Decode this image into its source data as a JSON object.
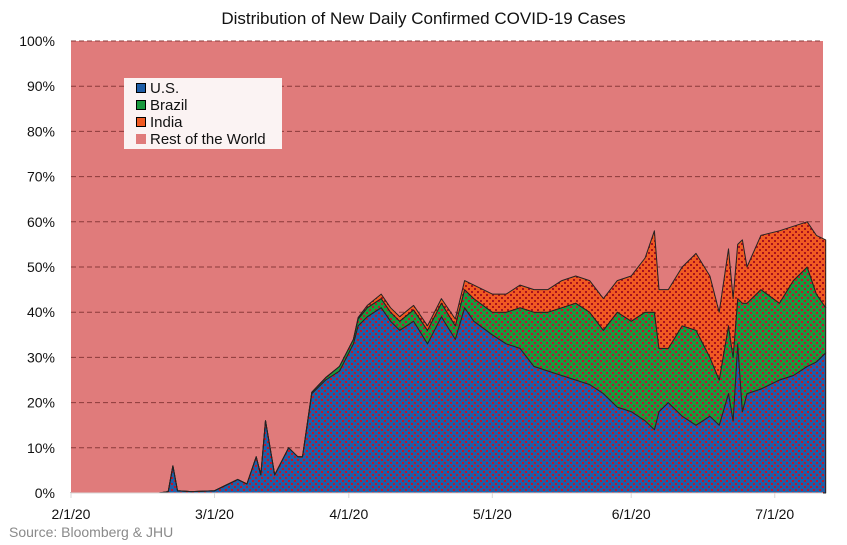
{
  "chart_data": {
    "type": "area",
    "stacked": true,
    "percent": true,
    "title": "Distribution of New Daily Confirmed COVID-19 Cases",
    "xlabel": "",
    "ylabel": "",
    "ylim": [
      0,
      100
    ],
    "y_ticks": [
      "0%",
      "10%",
      "20%",
      "30%",
      "40%",
      "50%",
      "60%",
      "70%",
      "80%",
      "90%",
      "100%"
    ],
    "x_ticks": [
      "2/1/20",
      "3/1/20",
      "4/1/20",
      "5/1/20",
      "6/1/20",
      "7/1/20"
    ],
    "grid": true,
    "legend_position": "top-left",
    "x": [
      "2/1",
      "2/10",
      "2/20",
      "2/22",
      "2/23",
      "2/24",
      "2/27",
      "3/1",
      "3/4",
      "3/6",
      "3/8",
      "3/10",
      "3/11",
      "3/12",
      "3/14",
      "3/17",
      "3/19",
      "3/20",
      "3/22",
      "3/25",
      "3/28",
      "3/31",
      "4/3",
      "4/5",
      "4/8",
      "4/10",
      "4/12",
      "4/15",
      "4/18",
      "4/21",
      "4/24",
      "4/26",
      "4/28",
      "5/1",
      "5/4",
      "5/7",
      "5/10",
      "5/13",
      "5/16",
      "5/19",
      "5/22",
      "5/25",
      "5/28",
      "6/1",
      "6/4",
      "6/6",
      "6/7",
      "6/9",
      "6/12",
      "6/15",
      "6/18",
      "6/20",
      "6/22",
      "6/23",
      "6/24",
      "6/25",
      "6/26",
      "6/29",
      "7/2",
      "7/5",
      "7/8",
      "7/10",
      "7/12"
    ],
    "series": [
      {
        "name": "U.S.",
        "color": "#1f5ea8",
        "values": [
          0,
          0,
          0,
          0.3,
          6,
          0.5,
          0.3,
          0.5,
          2,
          3,
          2,
          8,
          4,
          16,
          4,
          10,
          8,
          8,
          22,
          25,
          27,
          33,
          37,
          39,
          41,
          38,
          36,
          38,
          33,
          39,
          34,
          41,
          38,
          35,
          33,
          32,
          28,
          27,
          26,
          25,
          24,
          22,
          19,
          18,
          16,
          14,
          18,
          20,
          17,
          15,
          17,
          15,
          22,
          16,
          33,
          18,
          22,
          23,
          25,
          26,
          28,
          29,
          31
        ]
      },
      {
        "name": "Brazil",
        "color": "#19993e",
        "values": [
          0,
          0,
          0,
          0,
          0,
          0,
          0,
          0,
          0,
          0,
          0,
          0,
          0,
          0,
          0,
          0,
          0,
          0,
          0.3,
          0.5,
          1,
          1,
          1.5,
          2,
          2,
          2,
          2,
          2.5,
          3,
          3,
          3,
          4,
          5,
          5,
          7,
          9,
          12,
          13,
          15,
          17,
          16,
          14,
          21,
          20,
          24,
          26,
          14,
          12,
          20,
          21,
          13,
          10,
          15,
          14,
          10,
          24,
          20,
          22,
          17,
          21,
          22,
          15,
          10
        ]
      },
      {
        "name": "India",
        "color": "#f05a22",
        "values": [
          0,
          0,
          0,
          0,
          0,
          0,
          0,
          0,
          0,
          0,
          0,
          0,
          0,
          0,
          0,
          0,
          0,
          0,
          0,
          0,
          0,
          0,
          0.3,
          0.5,
          1,
          1,
          1,
          1,
          1,
          1,
          1.5,
          2,
          3,
          4,
          4,
          5,
          5,
          5,
          6,
          6,
          7,
          7,
          7,
          10,
          12,
          18,
          13,
          13,
          13,
          17,
          18,
          15,
          17,
          13,
          12,
          14,
          8,
          12,
          16,
          12,
          10,
          13,
          15
        ]
      },
      {
        "name": "Rest of the World",
        "color": "#e07b7b"
      }
    ]
  },
  "source": "Source: Bloomberg & JHU"
}
